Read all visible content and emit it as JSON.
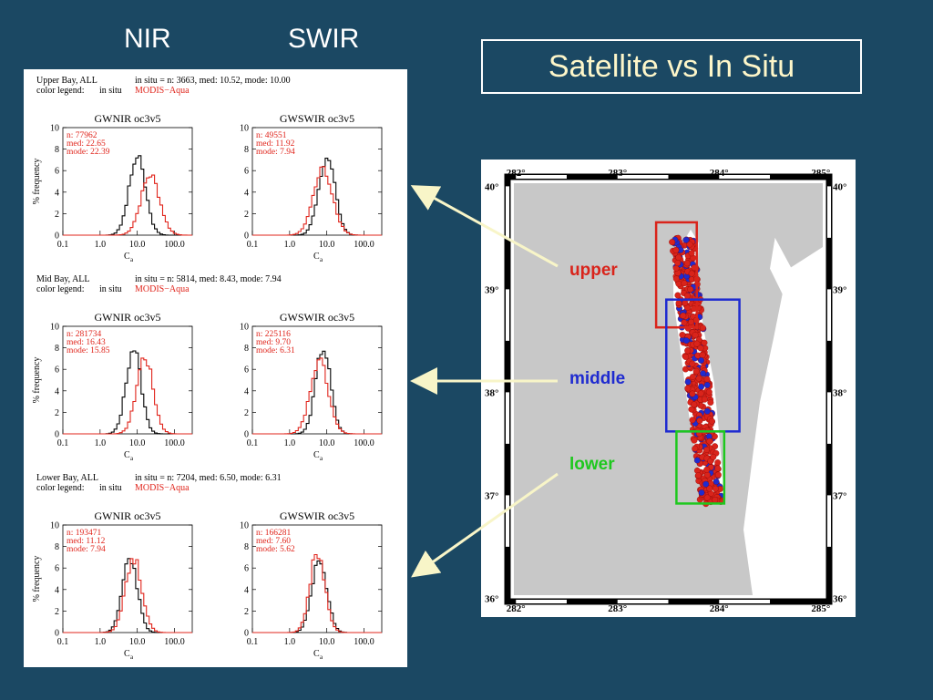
{
  "header": {
    "nir_label": "NIR",
    "swir_label": "SWIR",
    "title": "Satellite vs In Situ"
  },
  "colors": {
    "background": "#1b4863",
    "in_situ": "#000000",
    "modis": "#e0241b",
    "title_text": "#fdf6c9",
    "upper": "#d9241b",
    "middle": "#1f2bd0",
    "lower": "#1ec81e",
    "arrow": "#f8f5c8",
    "land": "#c8c8c8"
  },
  "chart_data": [
    {
      "region": "Upper Bay, ALL",
      "insitu_summary": "in situ = n: 3663, med: 10.52, mode: 10.00",
      "legend_label": "color legend:",
      "legend_insitu": "in situ",
      "legend_sat": "MODIS−Aqua",
      "insitu": {
        "n": 3663,
        "med": 10.52,
        "mode": 10.0
      },
      "plots": [
        {
          "type": "line",
          "title": "GWNIR oc3v5",
          "n": "n: 77962",
          "med": "med: 22.65",
          "mode": "mode: 22.39",
          "insitu_mode": 10.0,
          "insitu_peak": 7.2,
          "insitu_width": 0.22,
          "sat_mode": 22.39,
          "sat_peak": 5.6,
          "sat_width": 0.25
        },
        {
          "type": "line",
          "title": "GWSWIR oc3v5",
          "n": "n: 49551",
          "med": "med: 11.92",
          "mode": "mode: 7.94",
          "insitu_mode": 10.0,
          "insitu_peak": 7.2,
          "insitu_width": 0.22,
          "sat_mode": 7.94,
          "sat_peak": 6.1,
          "sat_width": 0.26
        }
      ]
    },
    {
      "region": "Mid Bay, ALL",
      "insitu_summary": "in situ = n: 5814, med: 8.43, mode: 7.94",
      "legend_label": "color legend:",
      "legend_insitu": "in situ",
      "legend_sat": "MODIS−Aqua",
      "insitu": {
        "n": 5814,
        "med": 8.43,
        "mode": 7.94
      },
      "plots": [
        {
          "type": "line",
          "title": "GWNIR oc3v5",
          "n": "n: 281734",
          "med": "med: 16.43",
          "mode": "mode: 15.85",
          "insitu_mode": 7.94,
          "insitu_peak": 8.0,
          "insitu_width": 0.2,
          "sat_mode": 15.85,
          "sat_peak": 7.2,
          "sat_width": 0.22
        },
        {
          "type": "line",
          "title": "GWSWIR oc3v5",
          "n": "n: 225116",
          "med": "med: 9.70",
          "mode": "mode: 6.31",
          "insitu_mode": 7.94,
          "insitu_peak": 8.0,
          "insitu_width": 0.2,
          "sat_mode": 6.31,
          "sat_peak": 6.7,
          "sat_width": 0.24
        }
      ]
    },
    {
      "region": "Lower Bay, ALL",
      "insitu_summary": "in situ = n: 7204, med: 6.50, mode: 6.31",
      "legend_label": "color legend:",
      "legend_insitu": "in situ",
      "legend_sat": "MODIS−Aqua",
      "insitu": {
        "n": 7204,
        "med": 6.5,
        "mode": 6.31
      },
      "plots": [
        {
          "type": "line",
          "title": "GWNIR oc3v5",
          "n": "n: 193471",
          "med": "med: 11.12",
          "mode": "mode: 7.94",
          "insitu_mode": 6.31,
          "insitu_peak": 7.0,
          "insitu_width": 0.2,
          "sat_mode": 7.94,
          "sat_peak": 6.9,
          "sat_width": 0.22
        },
        {
          "type": "line",
          "title": "GWSWIR oc3v5",
          "n": "n: 166281",
          "med": "med: 7.60",
          "mode": "mode: 5.62",
          "insitu_mode": 6.31,
          "insitu_peak": 7.0,
          "insitu_width": 0.2,
          "sat_mode": 5.62,
          "sat_peak": 7.5,
          "sat_width": 0.2
        }
      ]
    }
  ],
  "axes": {
    "ylabel": "% frequency",
    "xlabel": "C",
    "xlabel_sub": "a",
    "y_ticks": [
      "0",
      "2",
      "4",
      "6",
      "8",
      "10"
    ],
    "x_ticks": [
      "0.1",
      "1.0",
      "10.0",
      "100.0"
    ],
    "xlim": [
      0.1,
      300
    ],
    "ylim": [
      0,
      10
    ],
    "xscale": "log"
  },
  "map": {
    "lon_labels": [
      "282°",
      "283°",
      "284°",
      "285°"
    ],
    "lat_labels": [
      "40°",
      "39°",
      "38°",
      "37°",
      "36°"
    ],
    "lon_values": [
      282,
      283,
      284,
      285
    ],
    "lat_values": [
      40,
      39,
      38,
      37,
      36
    ],
    "lon_range": [
      281.98,
      285.02
    ],
    "lat_range": [
      36.03,
      40.03
    ],
    "regions": [
      {
        "name": "upper",
        "lon": [
          283.38,
          283.78
        ],
        "lat": [
          38.63,
          39.65
        ]
      },
      {
        "name": "middle",
        "lon": [
          283.48,
          284.2
        ],
        "lat": [
          37.62,
          38.9
        ]
      },
      {
        "name": "lower",
        "lon": [
          283.58,
          284.05
        ],
        "lat": [
          36.92,
          37.62
        ]
      }
    ]
  },
  "labels": {
    "upper": "upper",
    "middle": "middle",
    "lower": "lower"
  }
}
